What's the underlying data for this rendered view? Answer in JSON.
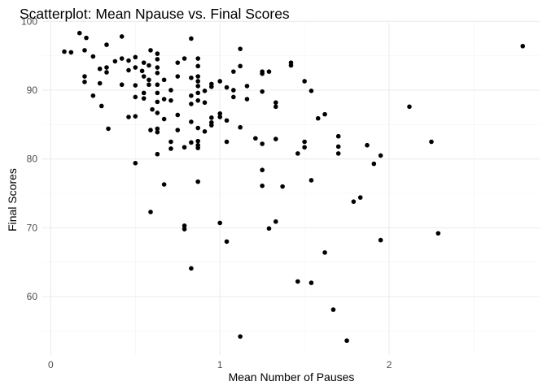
{
  "chart_data": {
    "type": "scatter",
    "title": "Scatterplot: Mean Npause vs. Final Scores",
    "xlabel": "Mean Number of Pauses",
    "ylabel": "Final Scores",
    "xlim": [
      -0.05,
      2.89
    ],
    "ylim": [
      51.5,
      99.8
    ],
    "x_ticks": [
      0,
      1,
      2
    ],
    "x_tick_labels": [
      "0",
      "1",
      "2"
    ],
    "x_minor_ticks": [
      0.5,
      1.5,
      2.5
    ],
    "y_ticks": [
      60,
      70,
      80,
      90,
      100
    ],
    "y_tick_labels": [
      "60",
      "70",
      "80",
      "90",
      "100"
    ],
    "y_minor_ticks": [
      55,
      65,
      75,
      85,
      95
    ],
    "grid": true,
    "legend": "none",
    "point_color": "#000000",
    "points": [
      [
        0.08,
        95.6
      ],
      [
        0.12,
        95.5
      ],
      [
        0.17,
        98.3
      ],
      [
        0.21,
        97.6
      ],
      [
        0.2,
        95.8
      ],
      [
        0.2,
        92.0
      ],
      [
        0.2,
        91.2
      ],
      [
        0.25,
        94.9
      ],
      [
        0.25,
        89.2
      ],
      [
        0.29,
        93.1
      ],
      [
        0.29,
        91.0
      ],
      [
        0.3,
        87.7
      ],
      [
        0.33,
        96.6
      ],
      [
        0.33,
        93.3
      ],
      [
        0.33,
        92.6
      ],
      [
        0.34,
        84.4
      ],
      [
        0.38,
        94.2
      ],
      [
        0.42,
        97.8
      ],
      [
        0.42,
        94.6
      ],
      [
        0.42,
        90.8
      ],
      [
        0.46,
        94.3
      ],
      [
        0.46,
        92.9
      ],
      [
        0.46,
        86.1
      ],
      [
        0.5,
        94.8
      ],
      [
        0.5,
        93.3
      ],
      [
        0.5,
        90.7
      ],
      [
        0.5,
        89.0
      ],
      [
        0.5,
        86.2
      ],
      [
        0.5,
        79.4
      ],
      [
        0.54,
        92.8
      ],
      [
        0.55,
        94.0
      ],
      [
        0.55,
        92.0
      ],
      [
        0.55,
        89.6
      ],
      [
        0.55,
        88.8
      ],
      [
        0.58,
        93.6
      ],
      [
        0.58,
        91.5
      ],
      [
        0.58,
        90.8
      ],
      [
        0.59,
        72.3
      ],
      [
        0.59,
        95.8
      ],
      [
        0.6,
        87.2
      ],
      [
        0.59,
        84.2
      ],
      [
        0.63,
        95.3
      ],
      [
        0.63,
        94.5
      ],
      [
        0.63,
        93.3
      ],
      [
        0.63,
        92.5
      ],
      [
        0.63,
        90.8
      ],
      [
        0.63,
        89.6
      ],
      [
        0.63,
        88.3
      ],
      [
        0.63,
        86.7
      ],
      [
        0.63,
        84.4
      ],
      [
        0.63,
        83.9
      ],
      [
        0.63,
        80.7
      ],
      [
        0.67,
        91.5
      ],
      [
        0.67,
        88.7
      ],
      [
        0.67,
        85.8
      ],
      [
        0.67,
        76.3
      ],
      [
        0.71,
        90.0
      ],
      [
        0.71,
        88.5
      ],
      [
        0.71,
        82.5
      ],
      [
        0.71,
        81.5
      ],
      [
        0.75,
        94.0
      ],
      [
        0.75,
        92.0
      ],
      [
        0.75,
        86.4
      ],
      [
        0.75,
        84.2
      ],
      [
        0.79,
        94.6
      ],
      [
        0.79,
        81.7
      ],
      [
        0.79,
        70.3
      ],
      [
        0.79,
        69.8
      ],
      [
        0.83,
        97.5
      ],
      [
        0.83,
        91.8
      ],
      [
        0.83,
        89.2
      ],
      [
        0.83,
        88.0
      ],
      [
        0.83,
        85.4
      ],
      [
        0.83,
        82.4
      ],
      [
        0.83,
        64.1
      ],
      [
        0.87,
        94.6
      ],
      [
        0.87,
        93.5
      ],
      [
        0.87,
        92.0
      ],
      [
        0.87,
        91.3
      ],
      [
        0.87,
        90.6
      ],
      [
        0.87,
        89.6
      ],
      [
        0.87,
        88.5
      ],
      [
        0.87,
        84.5
      ],
      [
        0.87,
        82.6
      ],
      [
        0.87,
        82.0
      ],
      [
        0.87,
        81.6
      ],
      [
        0.87,
        76.7
      ],
      [
        0.91,
        89.9
      ],
      [
        0.91,
        88.2
      ],
      [
        0.91,
        84.0
      ],
      [
        0.95,
        90.9
      ],
      [
        0.95,
        90.5
      ],
      [
        0.95,
        86.0
      ],
      [
        0.95,
        85.3
      ],
      [
        0.95,
        84.9
      ],
      [
        1.0,
        91.3
      ],
      [
        1.0,
        86.6
      ],
      [
        1.0,
        86.1
      ],
      [
        1.0,
        70.7
      ],
      [
        1.04,
        90.4
      ],
      [
        1.04,
        85.6
      ],
      [
        1.04,
        82.5
      ],
      [
        1.04,
        68.0
      ],
      [
        1.08,
        92.7
      ],
      [
        1.08,
        90.0
      ],
      [
        1.08,
        89.0
      ],
      [
        1.12,
        96.0
      ],
      [
        1.12,
        93.5
      ],
      [
        1.12,
        84.6
      ],
      [
        1.12,
        54.2
      ],
      [
        1.16,
        90.6
      ],
      [
        1.16,
        88.7
      ],
      [
        1.21,
        83.0
      ],
      [
        1.25,
        92.7
      ],
      [
        1.25,
        92.4
      ],
      [
        1.25,
        89.8
      ],
      [
        1.25,
        82.2
      ],
      [
        1.25,
        78.4
      ],
      [
        1.25,
        76.1
      ],
      [
        1.29,
        92.7
      ],
      [
        1.29,
        69.9
      ],
      [
        1.33,
        88.2
      ],
      [
        1.33,
        87.6
      ],
      [
        1.33,
        82.9
      ],
      [
        1.33,
        70.9
      ],
      [
        1.37,
        76.0
      ],
      [
        1.42,
        94.0
      ],
      [
        1.42,
        93.6
      ],
      [
        1.46,
        80.8
      ],
      [
        1.46,
        62.2
      ],
      [
        1.5,
        91.3
      ],
      [
        1.5,
        82.5
      ],
      [
        1.5,
        81.7
      ],
      [
        1.54,
        89.9
      ],
      [
        1.54,
        76.9
      ],
      [
        1.54,
        62.0
      ],
      [
        1.58,
        85.9
      ],
      [
        1.62,
        86.5
      ],
      [
        1.62,
        66.4
      ],
      [
        1.67,
        58.1
      ],
      [
        1.7,
        83.3
      ],
      [
        1.7,
        81.8
      ],
      [
        1.7,
        80.8
      ],
      [
        1.75,
        53.6
      ],
      [
        1.79,
        73.8
      ],
      [
        1.83,
        74.4
      ],
      [
        1.87,
        82.0
      ],
      [
        1.91,
        79.3
      ],
      [
        1.95,
        80.5
      ],
      [
        1.95,
        68.2
      ],
      [
        2.12,
        87.6
      ],
      [
        2.25,
        82.5
      ],
      [
        2.29,
        69.2
      ],
      [
        2.79,
        96.4
      ]
    ]
  }
}
